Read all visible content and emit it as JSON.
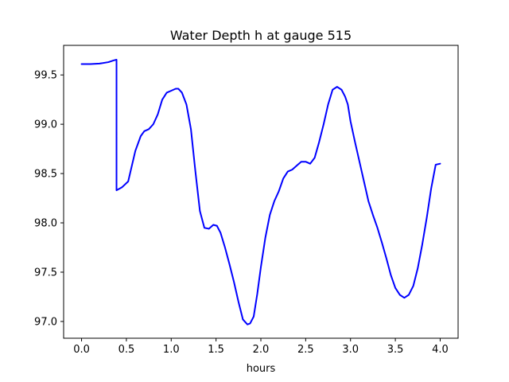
{
  "chart_data": {
    "type": "line",
    "title": "Water Depth h at gauge 515",
    "xlabel": "hours",
    "ylabel": "",
    "xlim": [
      -0.2,
      4.2
    ],
    "ylim": [
      96.83,
      99.8
    ],
    "x_ticks": [
      0.0,
      0.5,
      1.0,
      1.5,
      2.0,
      2.5,
      3.0,
      3.5,
      4.0
    ],
    "x_tick_labels": [
      "0.0",
      "0.5",
      "1.0",
      "1.5",
      "2.0",
      "2.5",
      "3.0",
      "3.5",
      "4.0"
    ],
    "y_ticks": [
      97.0,
      97.5,
      98.0,
      98.5,
      99.0,
      99.5
    ],
    "y_tick_labels": [
      "97.0",
      "97.5",
      "98.0",
      "98.5",
      "99.0",
      "99.5"
    ],
    "grid": false,
    "legend": "none",
    "series": [
      {
        "color": "#0000ff",
        "x": [
          0.0,
          0.1,
          0.2,
          0.3,
          0.35,
          0.39,
          0.39,
          0.45,
          0.52,
          0.6,
          0.66,
          0.7,
          0.75,
          0.8,
          0.85,
          0.9,
          0.95,
          1.0,
          1.05,
          1.08,
          1.12,
          1.17,
          1.22,
          1.27,
          1.32,
          1.37,
          1.42,
          1.47,
          1.51,
          1.55,
          1.6,
          1.65,
          1.7,
          1.75,
          1.8,
          1.85,
          1.88,
          1.92,
          1.96,
          2.0,
          2.05,
          2.1,
          2.15,
          2.2,
          2.25,
          2.3,
          2.35,
          2.4,
          2.45,
          2.5,
          2.55,
          2.6,
          2.65,
          2.7,
          2.75,
          2.8,
          2.85,
          2.9,
          2.94,
          2.97,
          3.0,
          3.05,
          3.1,
          3.15,
          3.2,
          3.25,
          3.3,
          3.35,
          3.4,
          3.45,
          3.5,
          3.55,
          3.6,
          3.65,
          3.7,
          3.75,
          3.8,
          3.85,
          3.9,
          3.95,
          4.0
        ],
        "y": [
          99.61,
          99.61,
          99.615,
          99.63,
          99.645,
          99.655,
          98.33,
          98.36,
          98.42,
          98.73,
          98.88,
          98.93,
          98.95,
          99.0,
          99.1,
          99.25,
          99.32,
          99.34,
          99.36,
          99.36,
          99.32,
          99.2,
          98.95,
          98.52,
          98.12,
          97.95,
          97.94,
          97.98,
          97.97,
          97.9,
          97.75,
          97.58,
          97.4,
          97.2,
          97.02,
          96.97,
          96.98,
          97.05,
          97.28,
          97.55,
          97.85,
          98.08,
          98.22,
          98.32,
          98.45,
          98.52,
          98.54,
          98.58,
          98.62,
          98.62,
          98.6,
          98.66,
          98.82,
          99.0,
          99.2,
          99.35,
          99.38,
          99.35,
          99.28,
          99.2,
          99.03,
          98.82,
          98.62,
          98.42,
          98.22,
          98.08,
          97.95,
          97.8,
          97.64,
          97.47,
          97.34,
          97.27,
          97.24,
          97.27,
          97.36,
          97.54,
          97.78,
          98.05,
          98.35,
          98.59,
          98.6
        ]
      }
    ]
  }
}
